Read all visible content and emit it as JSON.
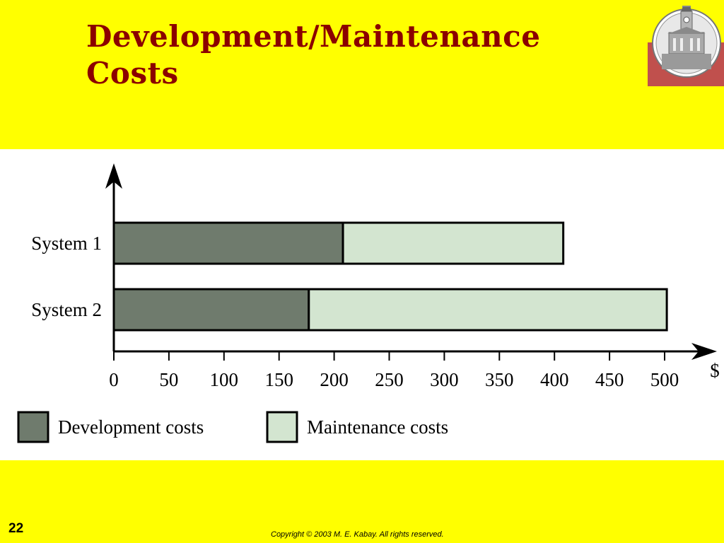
{
  "slide": {
    "title_line1": "Development/Maintenance",
    "title_line2": "Costs",
    "page_number": "22",
    "copyright": "Copyright © 2003 M. E. Kabay.  All rights reserved.",
    "logo_icon": "clock-tower-seal-icon"
  },
  "colors": {
    "background": "#ffff00",
    "title": "#8b0000",
    "development": "#6f7b6d",
    "maintenance": "#d3e5d0",
    "logo_band": "#c0504d"
  },
  "chart_data": {
    "type": "bar",
    "orientation": "horizontal",
    "stacked": true,
    "title": "",
    "xlabel": "$",
    "ylabel": "",
    "categories": [
      "System 1",
      "System 2"
    ],
    "series": [
      {
        "name": "Development costs",
        "values": [
          208,
          177
        ]
      },
      {
        "name": "Maintenance costs",
        "values": [
          200,
          325
        ]
      }
    ],
    "xlim": [
      0,
      500
    ],
    "x_ticks": [
      "0",
      "50",
      "100",
      "150",
      "200",
      "250",
      "300",
      "350",
      "400",
      "450",
      "500"
    ],
    "grid": false,
    "legend": "bottom"
  }
}
